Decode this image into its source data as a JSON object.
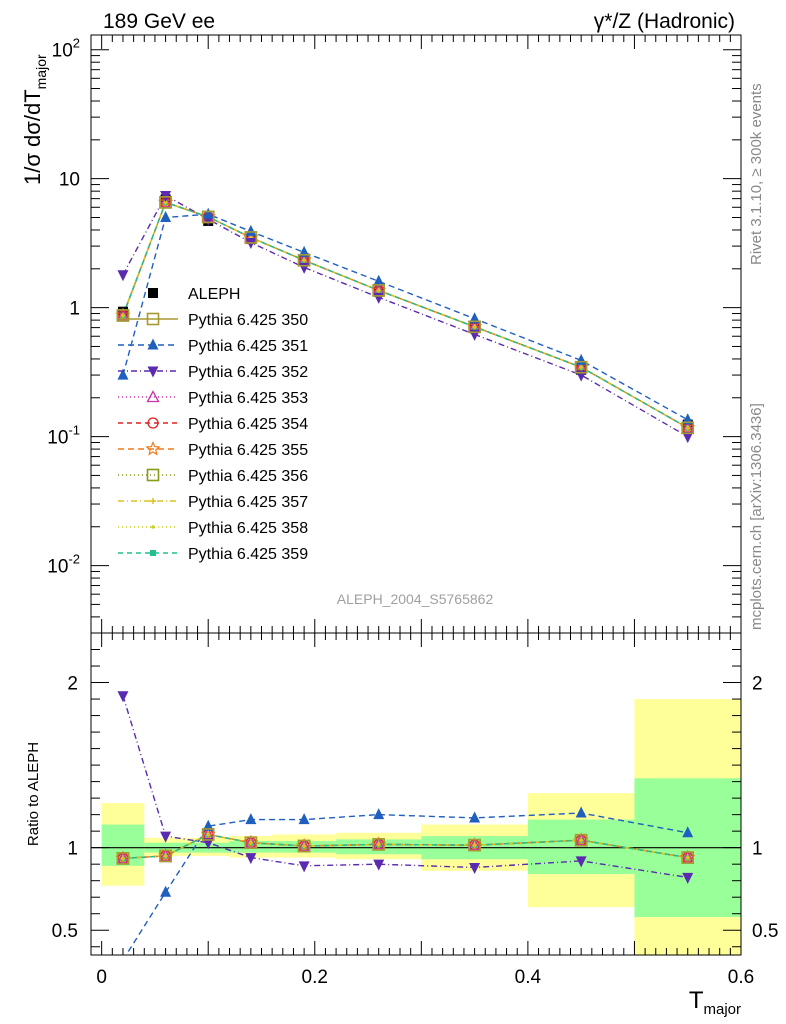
{
  "header": {
    "left": "189 GeV ee",
    "right": "γ*/Z (Hadronic)"
  },
  "side": {
    "top": "Rivet 3.1.10, ≥ 300k events",
    "bottom": "mcplots.cern.ch [arXiv:1306.3436]"
  },
  "watermark": "ALEPH_2004_S5765862",
  "chart_data": [
    {
      "type": "line",
      "ylabel_main": "1/σ  dσ/dT",
      "ylabel_sub": "major",
      "yscale": "log",
      "ylim": [
        0.003,
        130
      ],
      "xlim": [
        -0.01,
        0.6
      ],
      "ytick_labels": [
        "10",
        "1",
        "10"
      ],
      "ytick_exponents": [
        "2",
        "-1",
        "-2"
      ],
      "x": [
        0.02,
        0.06,
        0.1,
        0.14,
        0.19,
        0.26,
        0.35,
        0.45,
        0.55
      ],
      "data_label": "ALEPH",
      "data_values": [
        0.93,
        6.9,
        4.7,
        3.4,
        2.3,
        1.33,
        0.7,
        0.33,
        0.124
      ],
      "series": [
        {
          "name": "Pythia 6.425 350",
          "color": "#a89a32",
          "dash": "none",
          "marker": "square-open",
          "values": [
            0.87,
            6.55,
            5.05,
            3.5,
            2.33,
            1.36,
            0.71,
            0.345,
            0.117
          ]
        },
        {
          "name": "Pythia 6.425 351",
          "color": "#1f5fbf",
          "dash": "6,4",
          "marker": "triangle-up",
          "values": [
            0.3,
            5.0,
            5.3,
            3.9,
            2.68,
            1.6,
            0.82,
            0.39,
            0.135
          ]
        },
        {
          "name": "Pythia 6.425 352",
          "color": "#5a2ab0",
          "dash": "6,3,1,3",
          "marker": "triangle-down",
          "values": [
            1.8,
            7.4,
            4.85,
            3.2,
            2.05,
            1.2,
            0.62,
            0.3,
            0.1
          ]
        },
        {
          "name": "Pythia 6.425 353",
          "color": "#cc33aa",
          "dash": "1,3",
          "marker": "triangle-open",
          "values": [
            0.87,
            6.55,
            5.05,
            3.5,
            2.33,
            1.36,
            0.71,
            0.345,
            0.117
          ]
        },
        {
          "name": "Pythia 6.425 354",
          "color": "#e02020",
          "dash": "5,4",
          "marker": "circle-open",
          "values": [
            0.87,
            6.55,
            5.05,
            3.5,
            2.33,
            1.36,
            0.71,
            0.345,
            0.117
          ]
        },
        {
          "name": "Pythia 6.425 355",
          "color": "#f07a1a",
          "dash": "6,4",
          "marker": "star-open",
          "values": [
            0.87,
            6.55,
            5.05,
            3.5,
            2.33,
            1.36,
            0.71,
            0.345,
            0.117
          ]
        },
        {
          "name": "Pythia 6.425 356",
          "color": "#8a9a1a",
          "dash": "1,3",
          "marker": "square-open",
          "values": [
            0.87,
            6.55,
            5.05,
            3.5,
            2.33,
            1.36,
            0.71,
            0.345,
            0.117
          ]
        },
        {
          "name": "Pythia 6.425 357",
          "color": "#e0c020",
          "dash": "6,3,1,3",
          "marker": "cross",
          "values": [
            0.87,
            6.55,
            5.05,
            3.5,
            2.33,
            1.36,
            0.71,
            0.345,
            0.117
          ]
        },
        {
          "name": "Pythia 6.425 358",
          "color": "#c8d020",
          "dash": "1,3",
          "marker": "dot",
          "values": [
            0.87,
            6.55,
            5.05,
            3.5,
            2.33,
            1.36,
            0.71,
            0.345,
            0.117
          ]
        },
        {
          "name": "Pythia 6.425 359",
          "color": "#20c090",
          "dash": "5,4",
          "marker": "square-filled",
          "values": [
            0.87,
            6.55,
            5.05,
            3.5,
            2.33,
            1.36,
            0.71,
            0.345,
            0.117
          ]
        }
      ]
    },
    {
      "type": "line",
      "ylabel": "Ratio to ALEPH",
      "xlabel_main": "T",
      "xlabel_sub": "major",
      "ylim": [
        0.35,
        2.3
      ],
      "xlim": [
        -0.01,
        0.6
      ],
      "xticks": [
        0,
        0.2,
        0.4,
        0.6
      ],
      "xtick_labels": [
        "0",
        "0.2",
        "0.4",
        "0.6"
      ],
      "yticks": [
        0.5,
        1,
        2
      ],
      "ytick_labels": [
        "0.5",
        "1",
        "2"
      ],
      "x": [
        0.02,
        0.06,
        0.1,
        0.14,
        0.19,
        0.26,
        0.35,
        0.45,
        0.55
      ],
      "bin_edges": [
        0,
        0.04,
        0.08,
        0.12,
        0.16,
        0.22,
        0.3,
        0.4,
        0.5,
        0.6
      ],
      "band_inner": [
        [
          0.89,
          1.14
        ],
        [
          0.97,
          1.03
        ],
        [
          0.97,
          1.03
        ],
        [
          0.97,
          1.04
        ],
        [
          0.97,
          1.04
        ],
        [
          0.96,
          1.05
        ],
        [
          0.93,
          1.07
        ],
        [
          0.84,
          1.17
        ],
        [
          0.58,
          1.42
        ]
      ],
      "band_outer": [
        [
          0.77,
          1.27
        ],
        [
          0.95,
          1.06
        ],
        [
          0.95,
          1.06
        ],
        [
          0.94,
          1.07
        ],
        [
          0.94,
          1.08
        ],
        [
          0.93,
          1.09
        ],
        [
          0.86,
          1.14
        ],
        [
          0.64,
          1.33
        ],
        [
          0.35,
          1.9
        ]
      ],
      "series": [
        {
          "name": "Pythia 6.425 350",
          "values": [
            0.935,
            0.95,
            1.08,
            1.03,
            1.01,
            1.02,
            1.015,
            1.045,
            0.94
          ]
        },
        {
          "name": "Pythia 6.425 351",
          "values": [
            0.32,
            0.73,
            1.13,
            1.17,
            1.17,
            1.2,
            1.18,
            1.21,
            1.09
          ]
        },
        {
          "name": "Pythia 6.425 352",
          "values": [
            1.92,
            1.07,
            1.03,
            0.94,
            0.89,
            0.9,
            0.88,
            0.92,
            0.82
          ]
        },
        {
          "name": "Pythia 6.425 353",
          "values": [
            0.935,
            0.95,
            1.08,
            1.03,
            1.01,
            1.02,
            1.015,
            1.045,
            0.94
          ]
        },
        {
          "name": "Pythia 6.425 354",
          "values": [
            0.935,
            0.95,
            1.08,
            1.03,
            1.01,
            1.02,
            1.015,
            1.045,
            0.94
          ]
        },
        {
          "name": "Pythia 6.425 355",
          "values": [
            0.935,
            0.95,
            1.08,
            1.03,
            1.01,
            1.02,
            1.015,
            1.045,
            0.94
          ]
        },
        {
          "name": "Pythia 6.425 356",
          "values": [
            0.935,
            0.95,
            1.08,
            1.03,
            1.01,
            1.02,
            1.015,
            1.045,
            0.94
          ]
        },
        {
          "name": "Pythia 6.425 357",
          "values": [
            0.935,
            0.95,
            1.08,
            1.03,
            1.01,
            1.02,
            1.015,
            1.045,
            0.94
          ]
        },
        {
          "name": "Pythia 6.425 358",
          "values": [
            0.935,
            0.95,
            1.08,
            1.03,
            1.01,
            1.02,
            1.015,
            1.045,
            0.94
          ]
        },
        {
          "name": "Pythia 6.425 359",
          "values": [
            0.935,
            0.95,
            1.08,
            1.03,
            1.01,
            1.02,
            1.015,
            1.045,
            0.94
          ]
        }
      ]
    }
  ]
}
